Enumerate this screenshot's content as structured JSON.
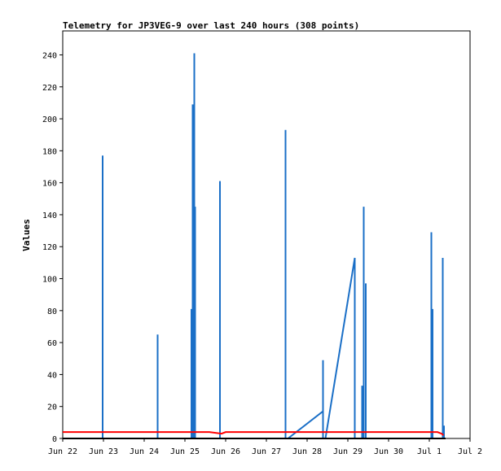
{
  "chart_data": {
    "type": "line",
    "title": "Telemetry for JP3VEG-9 over last 240 hours (308 points)",
    "xlabel": "",
    "ylabel": "Values",
    "x_ticks": [
      "Jun 22",
      "Jun 23",
      "Jun 24",
      "Jun 25",
      "Jun 26",
      "Jun 27",
      "Jun 28",
      "Jun 29",
      "Jun 30",
      "Jul 1",
      "Jul 2"
    ],
    "y_ticks": [
      0,
      20,
      40,
      60,
      80,
      100,
      120,
      140,
      160,
      180,
      200,
      220,
      240
    ],
    "ylim": [
      0,
      255
    ],
    "xlim_days": [
      0,
      10
    ],
    "grid": false,
    "legend": "none",
    "series": [
      {
        "color": "#1a6fc7",
        "points": [
          [
            0.0,
            0
          ],
          [
            0.98,
            0
          ],
          [
            0.98,
            177
          ],
          [
            0.98,
            0
          ],
          [
            2.33,
            0
          ],
          [
            2.33,
            65
          ],
          [
            2.33,
            0
          ],
          [
            3.16,
            0
          ],
          [
            3.16,
            81
          ],
          [
            3.16,
            0
          ],
          [
            3.19,
            0
          ],
          [
            3.19,
            209
          ],
          [
            3.19,
            0
          ],
          [
            3.23,
            0
          ],
          [
            3.23,
            241
          ],
          [
            3.23,
            0
          ],
          [
            3.25,
            0
          ],
          [
            3.25,
            145
          ],
          [
            3.25,
            0
          ],
          [
            3.86,
            0
          ],
          [
            3.86,
            161
          ],
          [
            3.86,
            0
          ],
          [
            5.47,
            0
          ],
          [
            5.47,
            193
          ],
          [
            5.47,
            0
          ],
          [
            5.53,
            0
          ],
          [
            6.39,
            17
          ],
          [
            6.39,
            49
          ],
          [
            6.39,
            0
          ],
          [
            6.45,
            0
          ],
          [
            7.17,
            113
          ],
          [
            7.17,
            0
          ],
          [
            7.35,
            0
          ],
          [
            7.35,
            33
          ],
          [
            7.35,
            0
          ],
          [
            7.39,
            0
          ],
          [
            7.39,
            145
          ],
          [
            7.39,
            0
          ],
          [
            7.44,
            0
          ],
          [
            7.44,
            97
          ],
          [
            7.44,
            0
          ],
          [
            9.05,
            0
          ],
          [
            9.05,
            129
          ],
          [
            9.05,
            0
          ],
          [
            9.08,
            0
          ],
          [
            9.08,
            81
          ],
          [
            9.08,
            0
          ],
          [
            9.33,
            0
          ],
          [
            9.33,
            113
          ],
          [
            9.33,
            0
          ],
          [
            9.36,
            0
          ],
          [
            9.36,
            8
          ],
          [
            9.36,
            0
          ]
        ]
      },
      {
        "color": "#ff0000",
        "points": [
          [
            0.0,
            4
          ],
          [
            0.3,
            4
          ],
          [
            0.6,
            4
          ],
          [
            0.9,
            4
          ],
          [
            1.0,
            4
          ],
          [
            1.3,
            4
          ],
          [
            1.6,
            4
          ],
          [
            2.0,
            4
          ],
          [
            2.4,
            4
          ],
          [
            2.8,
            4
          ],
          [
            3.2,
            4
          ],
          [
            3.6,
            4
          ],
          [
            3.9,
            3
          ],
          [
            4.0,
            4
          ],
          [
            4.5,
            4
          ],
          [
            5.0,
            4
          ],
          [
            5.5,
            4
          ],
          [
            6.0,
            4
          ],
          [
            6.5,
            4
          ],
          [
            7.0,
            4
          ],
          [
            7.5,
            4
          ],
          [
            8.0,
            4
          ],
          [
            8.5,
            4
          ],
          [
            9.0,
            4
          ],
          [
            9.2,
            4
          ],
          [
            9.3,
            3
          ],
          [
            9.35,
            2
          ]
        ]
      },
      {
        "color": "#000000",
        "points": [
          [
            0.0,
            0
          ],
          [
            9.4,
            0
          ]
        ]
      }
    ]
  }
}
